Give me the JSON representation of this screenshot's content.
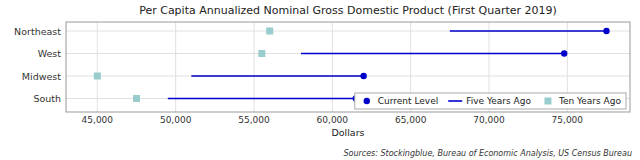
{
  "chart_data": {
    "type": "dumbbell",
    "orientation": "horizontal",
    "title": "Per Capita Annualized Nominal Gross Domestic Product (First Quarter 2019)",
    "xlabel": "Dollars",
    "annotations": [
      "Sources: Stockingblue, Bureau of Economic Analysis, US Census Bureau"
    ],
    "categories": [
      "Northeast",
      "West",
      "Midwest",
      "South"
    ],
    "series": [
      {
        "name": "Current Level",
        "color": "#0000cc",
        "marker": "dot",
        "values": [
          77500,
          74800,
          62000,
          61500
        ]
      },
      {
        "name": "Five Years Ago",
        "color": "#0000cc",
        "type": "line",
        "line_style": "solid",
        "values": [
          67500,
          58000,
          51000,
          49500
        ]
      },
      {
        "name": "Ten Years Ago",
        "color": "#99cccc",
        "marker": "square",
        "values": [
          56000,
          55500,
          45000,
          47500
        ]
      }
    ],
    "xlim": [
      43000,
      79000
    ],
    "xticks": [
      {
        "value": 45000,
        "label": "45,000"
      },
      {
        "value": 50000,
        "label": "50,000"
      },
      {
        "value": 55000,
        "label": "55,000"
      },
      {
        "value": 60000,
        "label": "60,000"
      },
      {
        "value": 65000,
        "label": "65,000"
      },
      {
        "value": 70000,
        "label": "70,000"
      },
      {
        "value": 75000,
        "label": "75,000"
      }
    ],
    "grid": true,
    "legend": "lower right"
  }
}
